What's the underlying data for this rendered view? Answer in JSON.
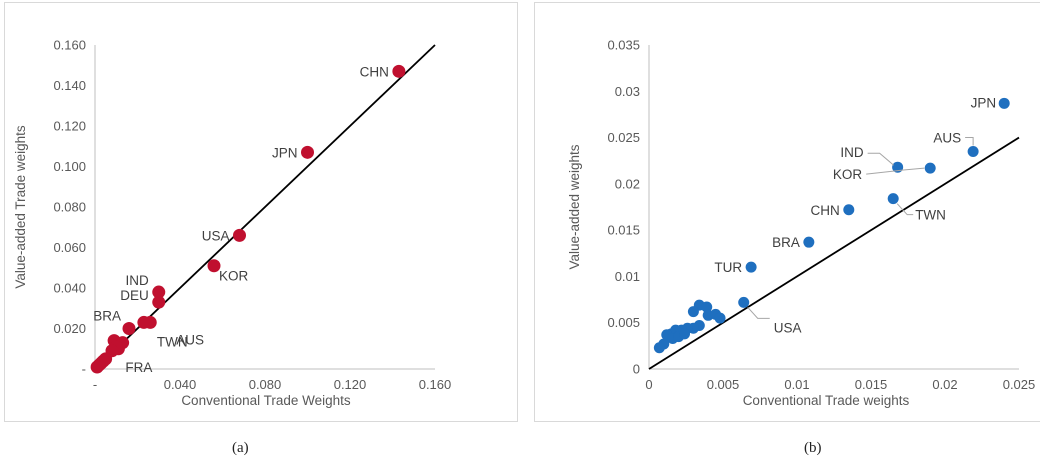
{
  "captions": [
    "(a)",
    "(b)"
  ],
  "chart_data": [
    {
      "type": "scatter",
      "title": "",
      "xlabel": "Conventional Trade Weights",
      "ylabel": "Value-added Trade weights",
      "xlim": [
        0,
        0.16
      ],
      "ylim": [
        0,
        0.16
      ],
      "x_ticks": [
        0,
        0.04,
        0.08,
        0.12,
        0.16
      ],
      "x_tick_labels": [
        "-",
        "0.040",
        "0.080",
        "0.120",
        "0.160"
      ],
      "y_ticks": [
        0,
        0.02,
        0.04,
        0.06,
        0.08,
        0.1,
        0.12,
        0.14,
        0.16
      ],
      "y_tick_labels": [
        "-",
        "0.020",
        "0.040",
        "0.060",
        "0.080",
        "0.100",
        "0.120",
        "0.140",
        "0.160"
      ],
      "color": "#c0102f",
      "reference_line": {
        "from": [
          0,
          0
        ],
        "to": [
          0.16,
          0.16
        ]
      },
      "grid": false,
      "points": [
        {
          "x": 0.143,
          "y": 0.147,
          "label": "CHN"
        },
        {
          "x": 0.1,
          "y": 0.107,
          "label": "JPN"
        },
        {
          "x": 0.068,
          "y": 0.066,
          "label": "USA"
        },
        {
          "x": 0.056,
          "y": 0.051,
          "label": "KOR"
        },
        {
          "x": 0.03,
          "y": 0.038,
          "label": "IND"
        },
        {
          "x": 0.03,
          "y": 0.033,
          "label": "DEU"
        },
        {
          "x": 0.026,
          "y": 0.023,
          "label": "AUS"
        },
        {
          "x": 0.016,
          "y": 0.02,
          "label": "BRA"
        },
        {
          "x": 0.023,
          "y": 0.023,
          "label": "TWN"
        },
        {
          "x": 0.011,
          "y": 0.01,
          "label": "FRA"
        },
        {
          "x": 0.009,
          "y": 0.014,
          "label": ""
        },
        {
          "x": 0.013,
          "y": 0.013,
          "label": ""
        },
        {
          "x": 0.01,
          "y": 0.011,
          "label": ""
        },
        {
          "x": 0.008,
          "y": 0.009,
          "label": ""
        },
        {
          "x": 0.005,
          "y": 0.005,
          "label": ""
        },
        {
          "x": 0.004,
          "y": 0.004,
          "label": ""
        },
        {
          "x": 0.003,
          "y": 0.003,
          "label": ""
        },
        {
          "x": 0.002,
          "y": 0.002,
          "label": ""
        },
        {
          "x": 0.001,
          "y": 0.001,
          "label": ""
        }
      ]
    },
    {
      "type": "scatter",
      "title": "",
      "xlabel": "Conventional Trade weights",
      "ylabel": "Value-added weights",
      "xlim": [
        0,
        0.025
      ],
      "ylim": [
        0,
        0.035
      ],
      "x_ticks": [
        0,
        0.005,
        0.01,
        0.015,
        0.02,
        0.025
      ],
      "x_tick_labels": [
        "0",
        "0.005",
        "0.01",
        "0.015",
        "0.02",
        "0.025"
      ],
      "y_ticks": [
        0,
        0.005,
        0.01,
        0.015,
        0.02,
        0.025,
        0.03,
        0.035
      ],
      "y_tick_labels": [
        "0",
        "0.005",
        "0.01",
        "0.015",
        "0.02",
        "0.025",
        "0.03",
        "0.035"
      ],
      "color": "#1f6fbf",
      "reference_line": {
        "from": [
          0,
          0
        ],
        "to": [
          0.025,
          0.025
        ]
      },
      "grid": false,
      "points": [
        {
          "x": 0.024,
          "y": 0.0287,
          "label": "JPN"
        },
        {
          "x": 0.0219,
          "y": 0.0235,
          "label": "AUS"
        },
        {
          "x": 0.0168,
          "y": 0.0218,
          "label": "IND"
        },
        {
          "x": 0.019,
          "y": 0.0217,
          "label": "KOR"
        },
        {
          "x": 0.0165,
          "y": 0.0184,
          "label": "TWN"
        },
        {
          "x": 0.0135,
          "y": 0.0172,
          "label": "CHN"
        },
        {
          "x": 0.0108,
          "y": 0.0137,
          "label": "BRA"
        },
        {
          "x": 0.0069,
          "y": 0.011,
          "label": "TUR"
        },
        {
          "x": 0.0064,
          "y": 0.0072,
          "label": "USA"
        },
        {
          "x": 0.0034,
          "y": 0.0069,
          "label": ""
        },
        {
          "x": 0.0039,
          "y": 0.0067,
          "label": ""
        },
        {
          "x": 0.003,
          "y": 0.0062,
          "label": ""
        },
        {
          "x": 0.004,
          "y": 0.0058,
          "label": ""
        },
        {
          "x": 0.0045,
          "y": 0.0059,
          "label": ""
        },
        {
          "x": 0.0048,
          "y": 0.0055,
          "label": ""
        },
        {
          "x": 0.0034,
          "y": 0.0047,
          "label": ""
        },
        {
          "x": 0.003,
          "y": 0.0044,
          "label": ""
        },
        {
          "x": 0.0026,
          "y": 0.0044,
          "label": ""
        },
        {
          "x": 0.0022,
          "y": 0.0042,
          "label": ""
        },
        {
          "x": 0.0018,
          "y": 0.0042,
          "label": ""
        },
        {
          "x": 0.0015,
          "y": 0.0038,
          "label": ""
        },
        {
          "x": 0.0012,
          "y": 0.0037,
          "label": ""
        },
        {
          "x": 0.0016,
          "y": 0.0033,
          "label": ""
        },
        {
          "x": 0.002,
          "y": 0.0035,
          "label": ""
        },
        {
          "x": 0.0024,
          "y": 0.0038,
          "label": ""
        },
        {
          "x": 0.001,
          "y": 0.0027,
          "label": ""
        },
        {
          "x": 0.0007,
          "y": 0.0023,
          "label": ""
        }
      ]
    }
  ]
}
